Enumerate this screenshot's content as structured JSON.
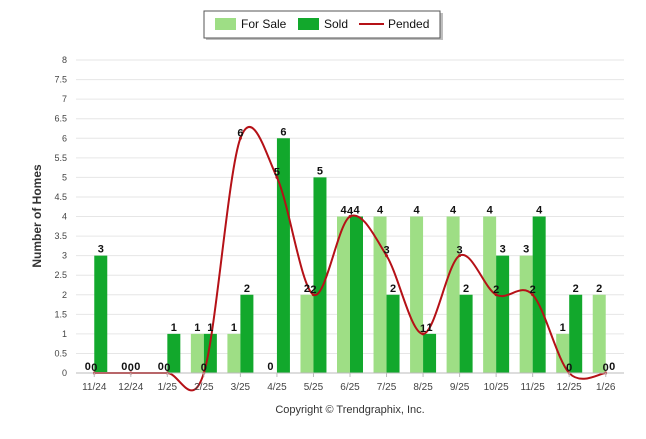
{
  "chart_data": {
    "type": "bar",
    "ylabel": "Number of Homes",
    "xlabel": "",
    "ylim": [
      0,
      8
    ],
    "yticks": [
      "0",
      "0.5",
      "1",
      "1.5",
      "2",
      "2.5",
      "3",
      "3.5",
      "4",
      "4.5",
      "5",
      "5.5",
      "6",
      "6.5",
      "7",
      "7.5",
      "8"
    ],
    "categories": [
      "11/24",
      "12/24",
      "1/25",
      "2/25",
      "3/25",
      "4/25",
      "5/25",
      "6/25",
      "7/25",
      "8/25",
      "9/25",
      "10/25",
      "11/25",
      "12/25",
      "1/26"
    ],
    "legend_position": "top-center",
    "grid": true,
    "series": [
      {
        "name": "For Sale",
        "kind": "bar",
        "color": "#9ede85",
        "values": [
          0,
          0,
          0,
          1,
          1,
          0,
          2,
          4,
          4,
          4,
          4,
          4,
          3,
          1,
          2
        ]
      },
      {
        "name": "Sold",
        "kind": "bar",
        "color": "#12a82c",
        "values": [
          3,
          0,
          1,
          1,
          2,
          6,
          5,
          4,
          2,
          1,
          2,
          3,
          4,
          2,
          0
        ]
      },
      {
        "name": "Pended",
        "kind": "line",
        "color": "#b51117",
        "values": [
          0,
          0,
          0,
          0,
          6,
          5,
          2,
          4,
          3,
          1,
          3,
          2,
          2,
          0,
          0
        ]
      }
    ],
    "credit": "Copyright © Trendgraphix, Inc."
  }
}
